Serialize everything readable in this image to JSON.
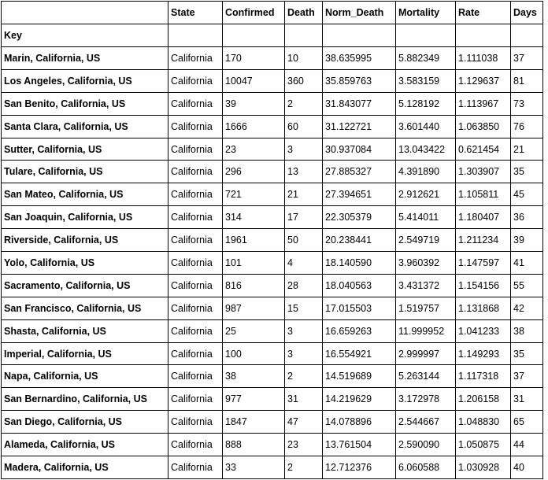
{
  "table": {
    "columns": [
      "State",
      "Confirmed",
      "Death",
      "Norm_Death",
      "Mortality",
      "Rate",
      "Days"
    ],
    "index_name": "Key",
    "rows": [
      {
        "key": "Marin, California, US",
        "cells": [
          "California",
          "170",
          "10",
          "38.635995",
          "5.882349",
          "1.111038",
          "37"
        ]
      },
      {
        "key": "Los Angeles, California, US",
        "cells": [
          "California",
          "10047",
          "360",
          "35.859763",
          "3.583159",
          "1.129637",
          "81"
        ]
      },
      {
        "key": "San Benito, California, US",
        "cells": [
          "California",
          "39",
          "2",
          "31.843077",
          "5.128192",
          "1.113967",
          "73"
        ]
      },
      {
        "key": "Santa Clara, California, US",
        "cells": [
          "California",
          "1666",
          "60",
          "31.122721",
          "3.601440",
          "1.063850",
          "76"
        ]
      },
      {
        "key": "Sutter, California, US",
        "cells": [
          "California",
          "23",
          "3",
          "30.937084",
          "13.043422",
          "0.621454",
          "21"
        ]
      },
      {
        "key": "Tulare, California, US",
        "cells": [
          "California",
          "296",
          "13",
          "27.885327",
          "4.391890",
          "1.303907",
          "35"
        ]
      },
      {
        "key": "San Mateo, California, US",
        "cells": [
          "California",
          "721",
          "21",
          "27.394651",
          "2.912621",
          "1.105811",
          "45"
        ]
      },
      {
        "key": "San Joaquin, California, US",
        "cells": [
          "California",
          "314",
          "17",
          "22.305379",
          "5.414011",
          "1.180407",
          "36"
        ]
      },
      {
        "key": "Riverside, California, US",
        "cells": [
          "California",
          "1961",
          "50",
          "20.238441",
          "2.549719",
          "1.211234",
          "39"
        ]
      },
      {
        "key": "Yolo, California, US",
        "cells": [
          "California",
          "101",
          "4",
          "18.140590",
          "3.960392",
          "1.147597",
          "41"
        ]
      },
      {
        "key": "Sacramento, California, US",
        "cells": [
          "California",
          "816",
          "28",
          "18.040563",
          "3.431372",
          "1.154156",
          "55"
        ]
      },
      {
        "key": "San Francisco, California, US",
        "cells": [
          "California",
          "987",
          "15",
          "17.015503",
          "1.519757",
          "1.131868",
          "42"
        ]
      },
      {
        "key": "Shasta, California, US",
        "cells": [
          "California",
          "25",
          "3",
          "16.659263",
          "11.999952",
          "1.041233",
          "38"
        ]
      },
      {
        "key": "Imperial, California, US",
        "cells": [
          "California",
          "100",
          "3",
          "16.554921",
          "2.999997",
          "1.149293",
          "35"
        ]
      },
      {
        "key": "Napa, California, US",
        "cells": [
          "California",
          "38",
          "2",
          "14.519689",
          "5.263144",
          "1.117318",
          "37"
        ]
      },
      {
        "key": "San Bernardino, California, US",
        "cells": [
          "California",
          "977",
          "31",
          "14.219629",
          "3.172978",
          "1.206158",
          "31"
        ]
      },
      {
        "key": "San Diego, California, US",
        "cells": [
          "California",
          "1847",
          "47",
          "14.078896",
          "2.544667",
          "1.048830",
          "65"
        ]
      },
      {
        "key": "Alameda, California, US",
        "cells": [
          "California",
          "888",
          "23",
          "13.761504",
          "2.590090",
          "1.050875",
          "44"
        ]
      },
      {
        "key": "Madera, California, US",
        "cells": [
          "California",
          "33",
          "2",
          "12.712376",
          "6.060588",
          "1.030928",
          "40"
        ]
      }
    ]
  }
}
